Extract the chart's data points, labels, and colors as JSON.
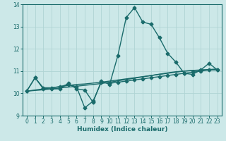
{
  "title": "",
  "xlabel": "Humidex (Indice chaleur)",
  "ylabel": "",
  "xlim": [
    -0.5,
    23.5
  ],
  "ylim": [
    9,
    14
  ],
  "yticks": [
    9,
    10,
    11,
    12,
    13,
    14
  ],
  "xticks": [
    0,
    1,
    2,
    3,
    4,
    5,
    6,
    7,
    8,
    9,
    10,
    11,
    12,
    13,
    14,
    15,
    16,
    17,
    18,
    19,
    20,
    21,
    22,
    23
  ],
  "bg_color": "#cce8e8",
  "grid_color": "#b0d4d4",
  "line_color": "#1a6b6b",
  "line1_x": [
    0,
    1,
    2,
    3,
    4,
    5,
    6,
    7,
    8,
    9,
    10,
    11,
    12,
    13,
    14,
    15,
    16,
    17,
    18,
    19,
    20,
    21,
    22,
    23
  ],
  "line1_y": [
    10.1,
    10.7,
    10.2,
    10.2,
    10.2,
    10.45,
    10.2,
    10.15,
    9.6,
    10.55,
    10.4,
    11.7,
    13.4,
    13.85,
    13.2,
    13.1,
    12.5,
    11.8,
    11.4,
    10.9,
    10.85,
    11.05,
    11.35,
    11.05
  ],
  "line2_x": [
    0,
    1,
    2,
    3,
    4,
    5,
    6,
    7,
    8,
    9,
    10,
    11,
    12,
    13,
    14,
    15,
    16,
    17,
    18,
    19,
    20,
    21,
    22,
    23
  ],
  "line2_y": [
    10.1,
    10.7,
    10.25,
    10.25,
    10.3,
    10.4,
    10.3,
    9.35,
    9.65,
    10.5,
    10.45,
    10.5,
    10.55,
    10.6,
    10.65,
    10.7,
    10.75,
    10.8,
    10.85,
    10.9,
    10.95,
    11.0,
    11.05,
    11.05
  ],
  "line3_x": [
    0,
    1,
    2,
    3,
    4,
    5,
    6,
    7,
    8,
    9,
    10,
    11,
    12,
    13,
    14,
    15,
    16,
    17,
    18,
    19,
    20,
    21,
    22,
    23
  ],
  "line3_y": [
    10.1,
    10.15,
    10.2,
    10.25,
    10.3,
    10.35,
    10.4,
    10.42,
    10.46,
    10.5,
    10.55,
    10.6,
    10.65,
    10.7,
    10.75,
    10.8,
    10.85,
    10.9,
    10.95,
    11.0,
    11.02,
    11.04,
    11.06,
    11.08
  ],
  "line4_x": [
    0,
    1,
    2,
    3,
    4,
    5,
    6,
    7,
    8,
    9,
    10,
    11,
    12,
    13,
    14,
    15,
    16,
    17,
    18,
    19,
    20,
    21,
    22,
    23
  ],
  "line4_y": [
    10.1,
    10.13,
    10.16,
    10.2,
    10.24,
    10.28,
    10.32,
    10.36,
    10.4,
    10.44,
    10.5,
    10.56,
    10.62,
    10.68,
    10.74,
    10.8,
    10.86,
    10.92,
    10.97,
    11.0,
    11.03,
    11.05,
    11.07,
    11.09
  ]
}
